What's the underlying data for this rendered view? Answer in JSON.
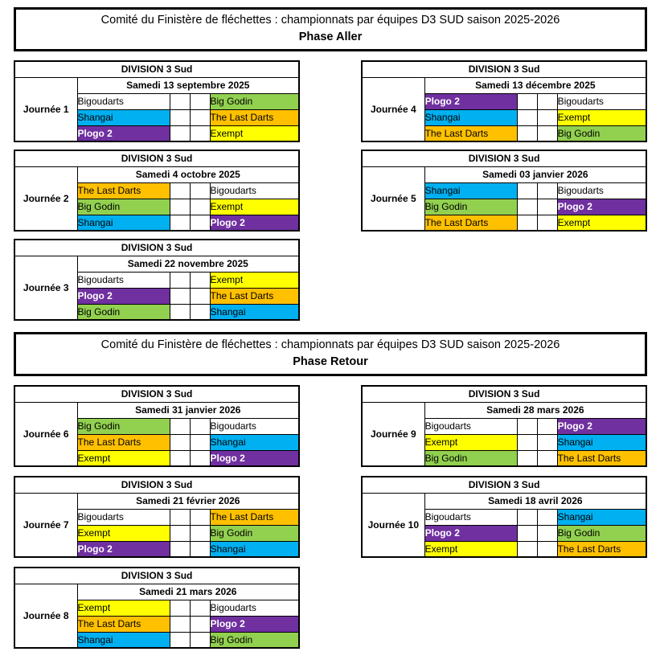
{
  "division_label": "DIVISION 3 Sud",
  "score_cells_per_match": 2,
  "colors": {
    "border": "#000000",
    "background": "#FFFFFF"
  },
  "teams": {
    "bigoudarts": {
      "label": "Bigoudarts",
      "bg": "#FFFFFF",
      "fg": "#000000",
      "bold": false
    },
    "big-godin": {
      "label": "Big Godin",
      "bg": "#92D050",
      "fg": "#000000",
      "bold": false
    },
    "shangai": {
      "label": "Shangai",
      "bg": "#00B0F0",
      "fg": "#000000",
      "bold": false
    },
    "the-last-darts": {
      "label": "The Last Darts",
      "bg": "#FFC000",
      "fg": "#000000",
      "bold": false
    },
    "plogo-2": {
      "label": "Plogo 2",
      "bg": "#7030A0",
      "fg": "#FFFFFF",
      "bold": true
    },
    "exempt": {
      "label": "Exempt",
      "bg": "#FFFF00",
      "fg": "#000000",
      "bold": false
    }
  },
  "sections": [
    {
      "title": "Comité du Finistère de fléchettes : championnats par équipes D3 SUD saison 2025-2026",
      "subtitle": "Phase Aller",
      "columns": [
        [
          {
            "journee": "Journée 1",
            "date": "Samedi 13 septembre 2025",
            "matches": [
              [
                "bigoudarts",
                "big-godin"
              ],
              [
                "shangai",
                "the-last-darts"
              ],
              [
                "plogo-2",
                "exempt"
              ]
            ]
          },
          {
            "journee": "Journée 2",
            "date": "Samedi 4 octobre 2025",
            "matches": [
              [
                "the-last-darts",
                "bigoudarts"
              ],
              [
                "big-godin",
                "exempt"
              ],
              [
                "shangai",
                "plogo-2"
              ]
            ]
          },
          {
            "journee": "Journée 3",
            "date": "Samedi 22 novembre 2025",
            "matches": [
              [
                "bigoudarts",
                "exempt"
              ],
              [
                "plogo-2",
                "the-last-darts"
              ],
              [
                "big-godin",
                "shangai"
              ]
            ]
          }
        ],
        [
          {
            "journee": "Journée 4",
            "date": "Samedi 13 décembre 2025",
            "matches": [
              [
                "plogo-2",
                "bigoudarts"
              ],
              [
                "shangai",
                "exempt"
              ],
              [
                "the-last-darts",
                "big-godin"
              ]
            ]
          },
          {
            "journee": "Journée 5",
            "date": "Samedi 03 janvier 2026",
            "matches": [
              [
                "shangai",
                "bigoudarts"
              ],
              [
                "big-godin",
                "plogo-2"
              ],
              [
                "the-last-darts",
                "exempt"
              ]
            ]
          }
        ]
      ]
    },
    {
      "title": "Comité du Finistère de fléchettes : championnats par équipes D3 SUD saison 2025-2026",
      "subtitle": "Phase Retour",
      "columns": [
        [
          {
            "journee": "Journée 6",
            "date": "Samedi 31 janvier 2026",
            "matches": [
              [
                "big-godin",
                "bigoudarts"
              ],
              [
                "the-last-darts",
                "shangai"
              ],
              [
                "exempt",
                "plogo-2"
              ]
            ]
          },
          {
            "journee": "Journée 7",
            "date": "Samedi 21 février 2026",
            "matches": [
              [
                "bigoudarts",
                "the-last-darts"
              ],
              [
                "exempt",
                "big-godin"
              ],
              [
                "plogo-2",
                "shangai"
              ]
            ]
          },
          {
            "journee": "Journée 8",
            "date": "Samedi 21 mars 2026",
            "matches": [
              [
                "exempt",
                "bigoudarts"
              ],
              [
                "the-last-darts",
                "plogo-2"
              ],
              [
                "shangai",
                "big-godin"
              ]
            ]
          }
        ],
        [
          {
            "journee": "Journée 9",
            "date": "Samedi 28 mars 2026",
            "matches": [
              [
                "bigoudarts",
                "plogo-2"
              ],
              [
                "exempt",
                "shangai"
              ],
              [
                "big-godin",
                "the-last-darts"
              ]
            ]
          },
          {
            "journee": "Journée 10",
            "date": "Samedi 18 avril 2026",
            "matches": [
              [
                "bigoudarts",
                "shangai"
              ],
              [
                "plogo-2",
                "big-godin"
              ],
              [
                "exempt",
                "the-last-darts"
              ]
            ]
          }
        ]
      ]
    }
  ]
}
